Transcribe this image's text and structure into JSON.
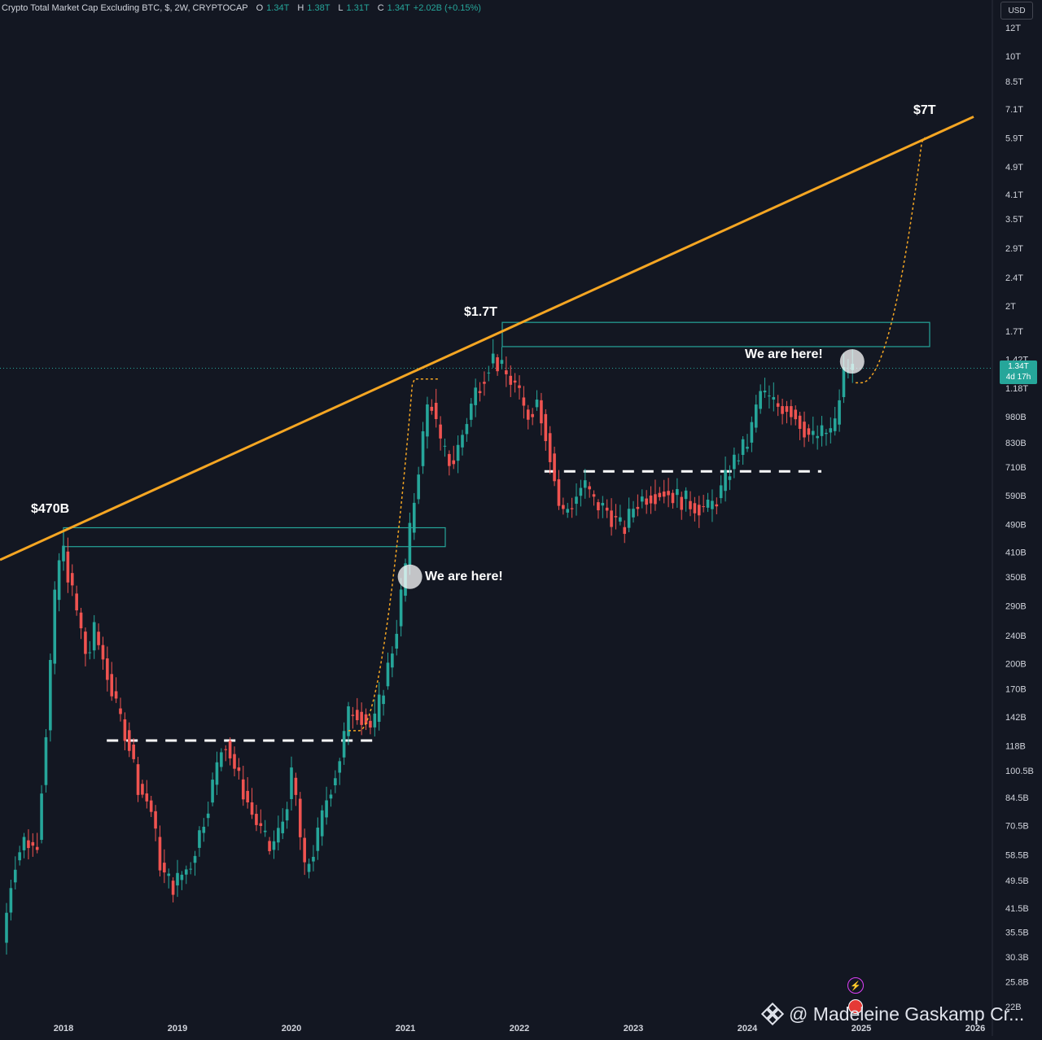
{
  "header": {
    "symbol": "Crypto Total Market Cap Excluding BTC, $, 2W, CRYPTOCAP",
    "o_label": "O",
    "o_value": "1.34T",
    "h_label": "H",
    "h_value": "1.38T",
    "l_label": "L",
    "l_value": "1.31T",
    "c_label": "C",
    "c_value": "1.34T",
    "change": "+2.02B (+0.15%)"
  },
  "currency_button": "USD",
  "price_badge": {
    "price": "1.34T",
    "countdown": "4d 17h"
  },
  "watermark": {
    "logo_icon": "binance-logo-icon",
    "text": "@ Madeleine Gaskamp Cr..."
  },
  "colors": {
    "background": "#131722",
    "up": "#26a69a",
    "down": "#ef5350",
    "trendline": "#f5a623",
    "zone": "#26a69a",
    "text": "#d1d4dc"
  },
  "chart_data": {
    "type": "candlestick",
    "title": "Crypto Total Market Cap Excluding BTC, $, 2W, CRYPTOCAP",
    "y_scale": "log",
    "y_ticks": [
      "12T",
      "10T",
      "8.5T",
      "7.1T",
      "5.9T",
      "4.9T",
      "4.1T",
      "3.5T",
      "2.9T",
      "2.4T",
      "2T",
      "1.7T",
      "1.42T",
      "1.18T",
      "980B",
      "830B",
      "710B",
      "590B",
      "490B",
      "410B",
      "350B",
      "290B",
      "240B",
      "200B",
      "170B",
      "142B",
      "118B",
      "100.5B",
      "84.5B",
      "70.5B",
      "58.5B",
      "49.5B",
      "41.5B",
      "35.5B",
      "30.3B",
      "25.8B",
      "22B"
    ],
    "x_ticks": [
      "2018",
      "2019",
      "2020",
      "2021",
      "2022",
      "2023",
      "2024",
      "2025",
      "2026"
    ],
    "last_price": 1.34,
    "annotations": [
      "$470B",
      "$1.7T",
      "$7T",
      "We are here!",
      "We are here!"
    ],
    "trendline": {
      "label": "$7T"
    },
    "resistance_zones": [
      "2018 peak zone",
      "2021 peak zone"
    ],
    "support_levels": [
      "2019-2020 range",
      "2022-2023 range"
    ],
    "key_levels_usd_billion": {
      "peak_2018": 470,
      "peak_2021": 1700,
      "target": 7000,
      "current": 1340
    },
    "candles": []
  }
}
